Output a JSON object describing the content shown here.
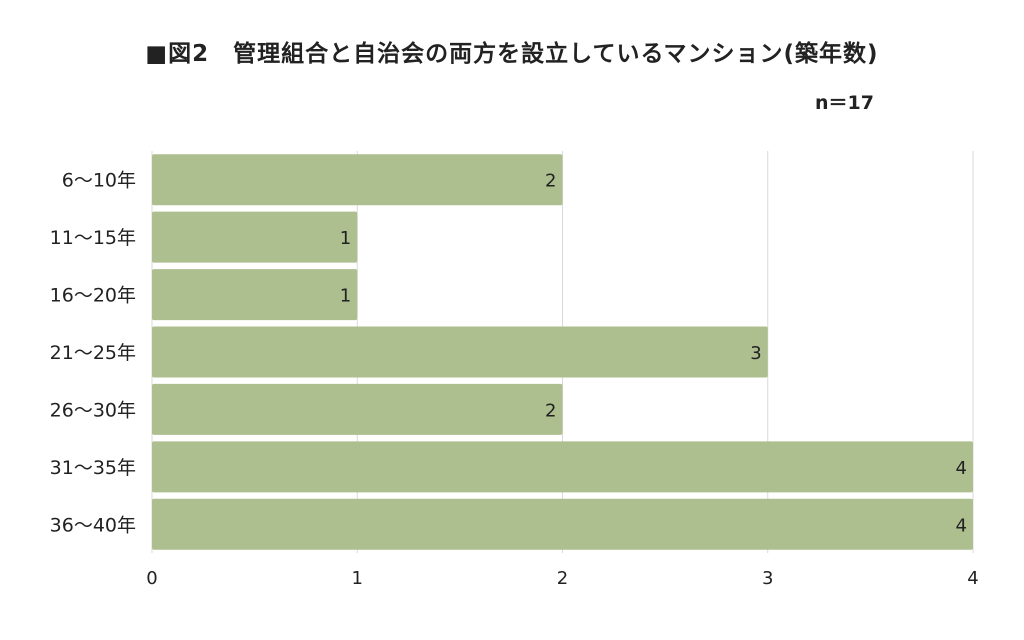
{
  "chart_data": {
    "type": "bar",
    "orientation": "horizontal",
    "title": "■図2　管理組合と自治会の両方を設立しているマンション(築年数)",
    "note": "n＝17",
    "categories": [
      "6～10年",
      "11～15年",
      "16～20年",
      "21～25年",
      "26～30年",
      "31～35年",
      "36～40年"
    ],
    "values": [
      2,
      1,
      1,
      3,
      2,
      4,
      4
    ],
    "xlim": [
      0,
      4
    ],
    "xticks": [
      0,
      1,
      2,
      3,
      4
    ],
    "xlabel": "",
    "ylabel": "",
    "grid": "vertical",
    "legend": "none",
    "data_labels": "inside-end",
    "colors": {
      "bar": "#adbe8f",
      "grid": "#d9d9d9",
      "text": "#222222"
    }
  }
}
